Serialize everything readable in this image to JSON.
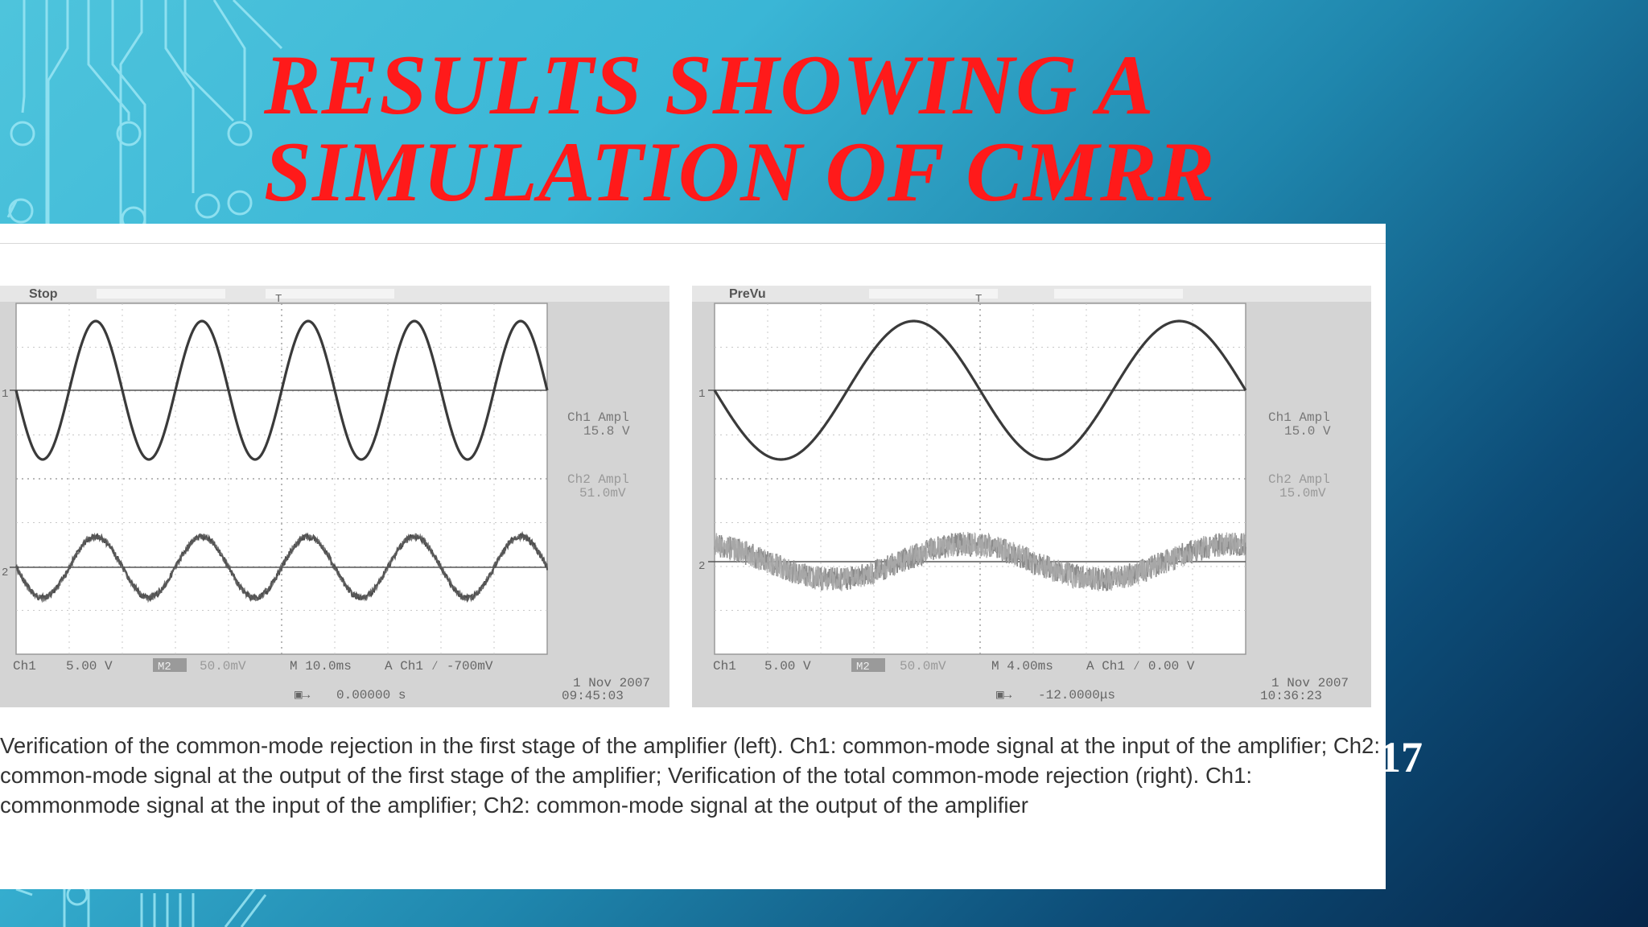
{
  "slide": {
    "title_lines": [
      "RESULTS SHOWING A",
      "SIMULATION OF CMRR"
    ],
    "slide_number": "17",
    "caption": "Verification of the common-mode rejection in the first stage of the amplifier (left). Ch1: common-mode signal at the input of the amplifier; Ch2: common-mode signal at the output of the first stage of the amplifier; Verification of the total common-mode rejection (right). Ch1: commonmode signal at the input of the amplifier; Ch2: common-mode signal at the output of the amplifier"
  },
  "colors": {
    "title": "#ff1a1a",
    "scope_frame": "#d4d4d4",
    "scope_screen": "#ffffff",
    "trace": "#3a3a3a"
  },
  "scopes": [
    {
      "status": "Stop",
      "ch1_amp_label": "Ch1 Ampl",
      "ch1_amp_value": "15.8 V",
      "ch2_amp_label": "Ch2 Ampl",
      "ch2_amp_value": "51.0mV",
      "ch1_label": "Ch1",
      "ch1_scale": "5.00 V",
      "ch2_label": "M2",
      "ch2_scale": "50.0mV",
      "timebase": "M 10.0ms",
      "trigger": "A  Ch1  ⁄  -700mV",
      "cursor": "0.00000 s",
      "date": "1 Nov 2007",
      "time": "09:45:03",
      "signal_data": {
        "ch1_cycles_on_screen": 5,
        "ch2_cycles_on_screen": 5,
        "ch2_noise": "low"
      }
    },
    {
      "status": "PreVu",
      "ch1_amp_label": "Ch1 Ampl",
      "ch1_amp_value": "15.0 V",
      "ch2_amp_label": "Ch2 Ampl",
      "ch2_amp_value": "15.0mV",
      "ch1_label": "Ch1",
      "ch1_scale": "5.00 V",
      "ch2_label": "M2",
      "ch2_scale": "50.0mV",
      "timebase": "M 4.00ms",
      "trigger": "A  Ch1  ⁄  0.00 V",
      "cursor": "-12.0000μs",
      "date": "1 Nov 2007",
      "time": "10:36:23",
      "signal_data": {
        "ch1_cycles_on_screen": 2,
        "ch2_cycles_on_screen": 2,
        "ch2_noise": "high"
      }
    }
  ]
}
